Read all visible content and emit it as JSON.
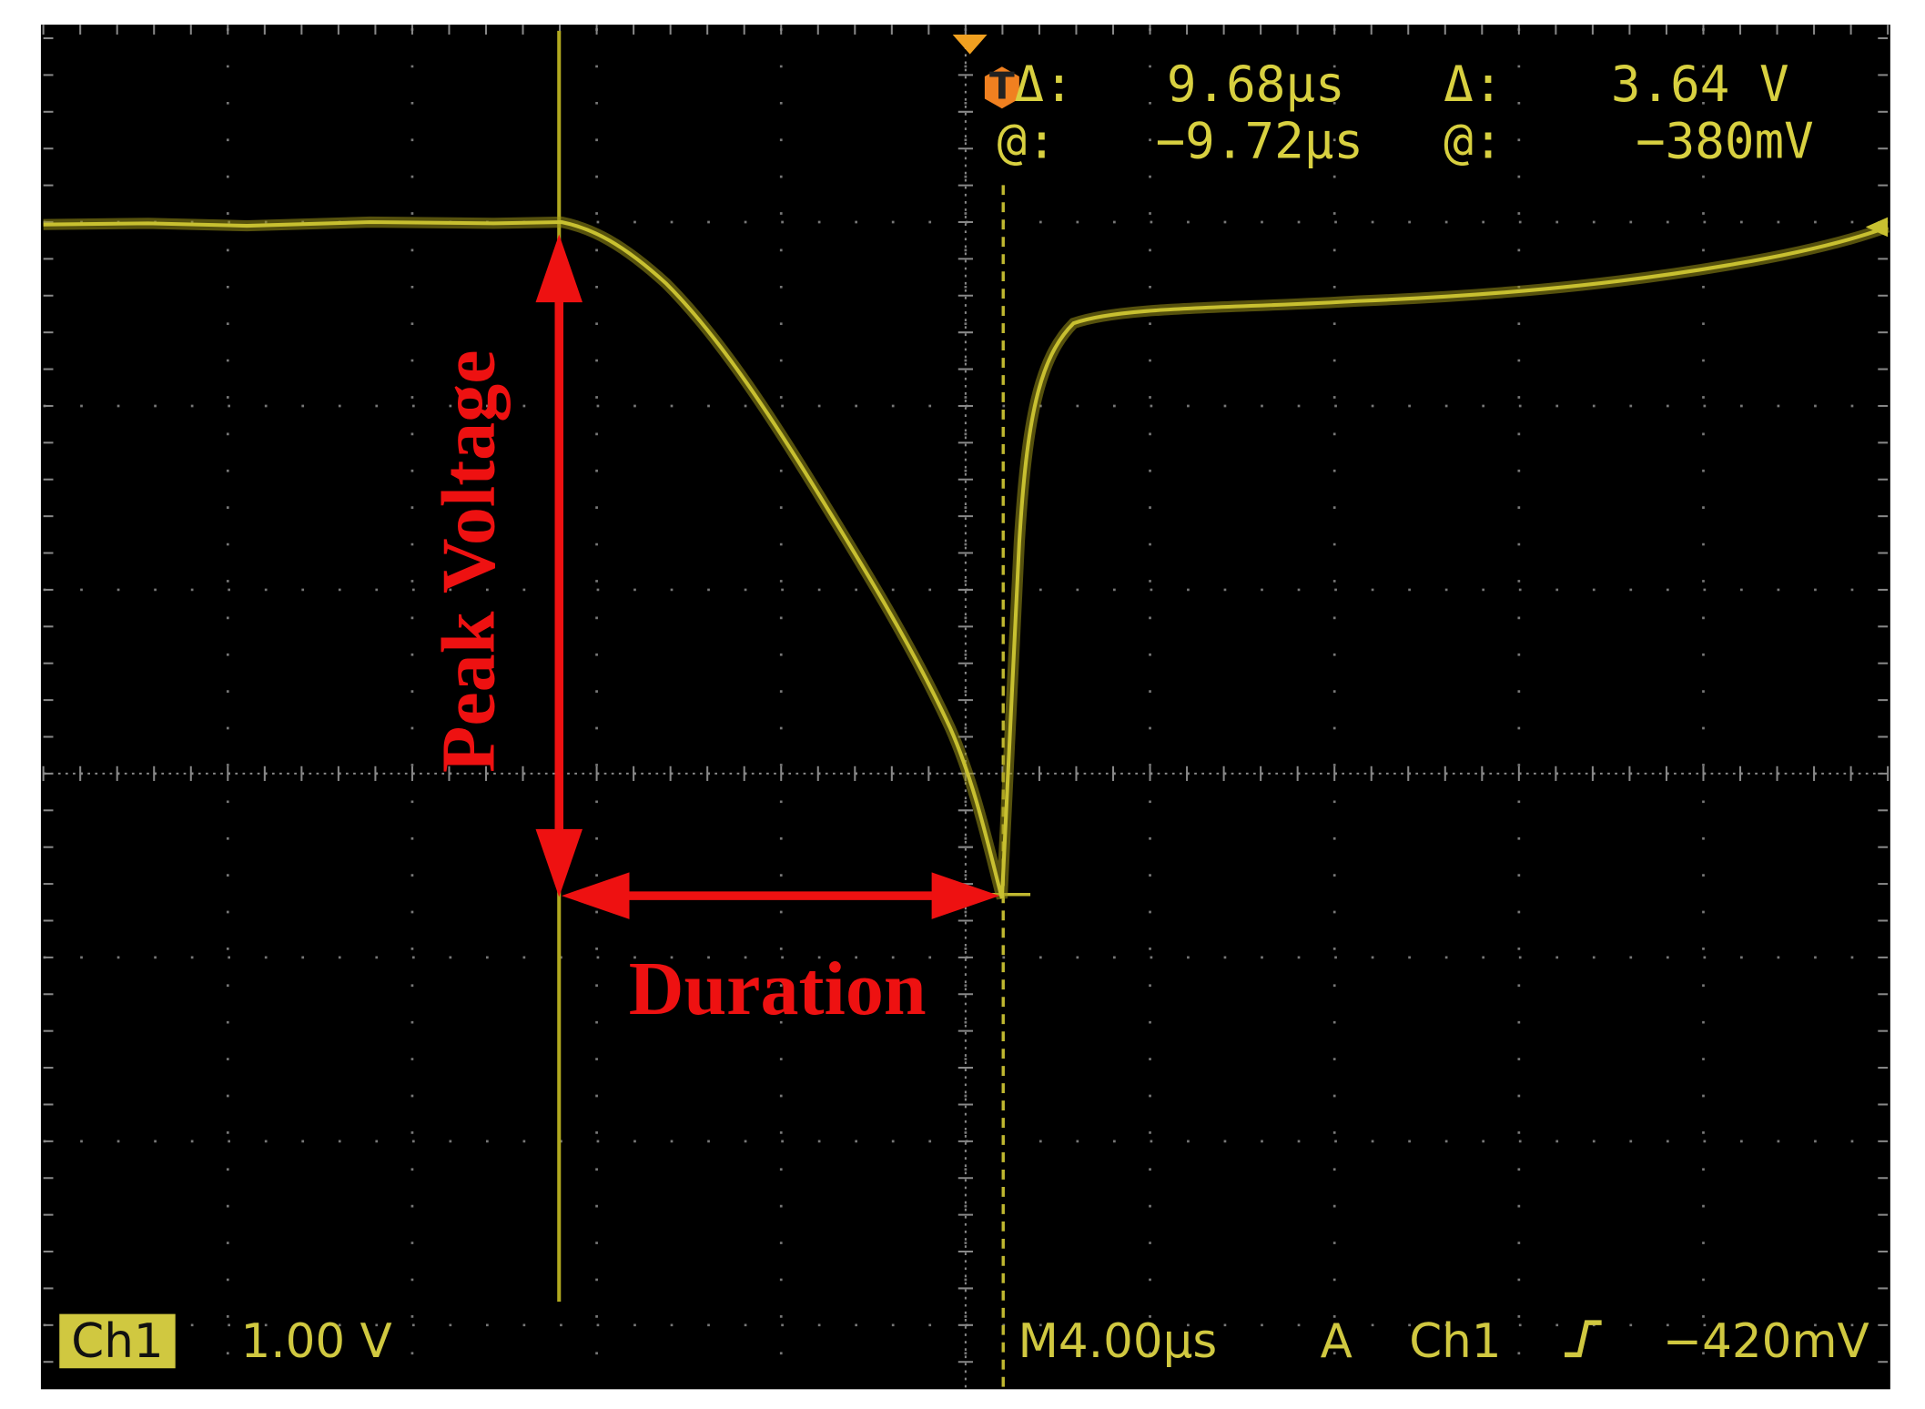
{
  "cursor_readout": {
    "delta_time_label": "Δ:",
    "delta_time": "9.68µs",
    "delta_voltage_label": "Δ:",
    "delta_voltage": "3.64 V",
    "at_time_label": "@:",
    "at_time": "−9.72µs",
    "at_voltage_label": "@:",
    "at_voltage": "−380mV"
  },
  "trigger_marker": "T",
  "status_bar": {
    "channel": "Ch1",
    "scale": "1.00 V",
    "timebase": "M4.00µs",
    "mode": "A",
    "trigger_source": "Ch1",
    "trigger_level": "−420mV"
  },
  "annotations": {
    "peak_voltage": "Peak Voltage",
    "duration": "Duration"
  }
}
